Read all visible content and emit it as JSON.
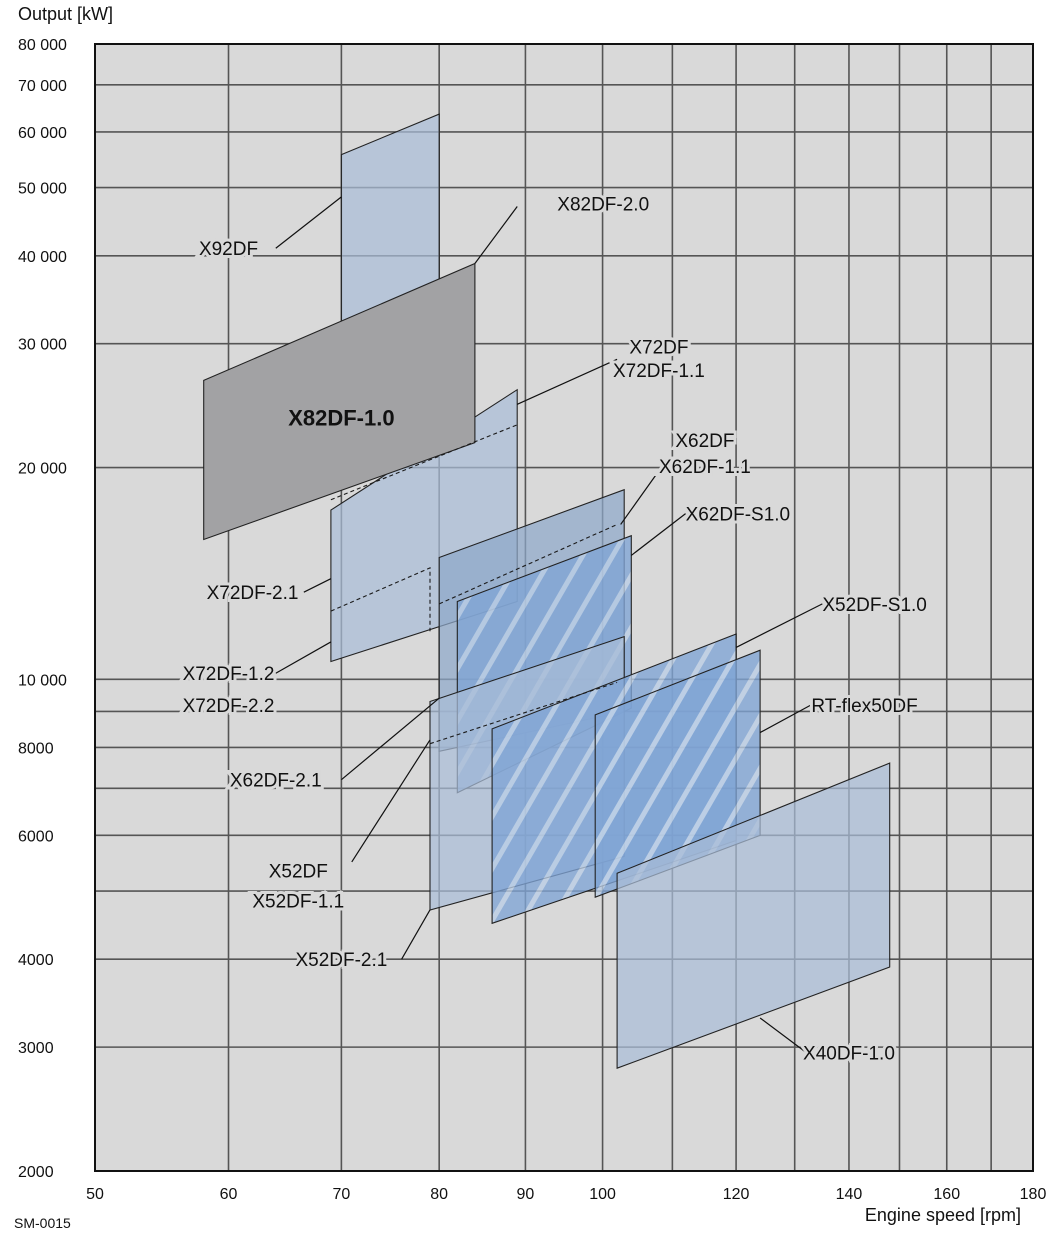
{
  "chart_data": {
    "type": "area",
    "ylabel": "Output [kW]",
    "xlabel": "Engine speed [rpm]",
    "x_scale": "log",
    "y_scale": "log",
    "xlim": [
      50,
      180
    ],
    "ylim": [
      2000,
      80000
    ],
    "grid": true,
    "x_ticks": [
      {
        "v": 50,
        "label": "50"
      },
      {
        "v": 60,
        "label": "60"
      },
      {
        "v": 70,
        "label": "70"
      },
      {
        "v": 80,
        "label": "80"
      },
      {
        "v": 90,
        "label": "90"
      },
      {
        "v": 100,
        "label": "100"
      },
      {
        "v": 120,
        "label": "120"
      },
      {
        "v": 140,
        "label": "140"
      },
      {
        "v": 160,
        "label": "160"
      },
      {
        "v": 180,
        "label": "180"
      }
    ],
    "x_minor_grid": [
      110,
      130,
      150,
      170
    ],
    "y_ticks": [
      {
        "v": 2000,
        "label": "2000"
      },
      {
        "v": 3000,
        "label": "3000"
      },
      {
        "v": 4000,
        "label": "4000"
      },
      {
        "v": 6000,
        "label": "6000"
      },
      {
        "v": 8000,
        "label": "8000"
      },
      {
        "v": 10000,
        "label": "10 000"
      },
      {
        "v": 20000,
        "label": "20 000"
      },
      {
        "v": 30000,
        "label": "30 000"
      },
      {
        "v": 40000,
        "label": "40 000"
      },
      {
        "v": 50000,
        "label": "50 000"
      },
      {
        "v": 60000,
        "label": "60 000"
      },
      {
        "v": 70000,
        "label": "70 000"
      },
      {
        "v": 80000,
        "label": "80 000"
      }
    ],
    "y_minor_grid": [
      5000,
      7000,
      9000
    ],
    "engines": [
      {
        "name": "X92DF",
        "style": "light",
        "points": [
          [
            70,
            55700
          ],
          [
            80,
            63600
          ],
          [
            80,
            36500
          ],
          [
            70,
            32100
          ]
        ]
      },
      {
        "name": "X72DF-1.2 / X72DF-2.2",
        "style": "light",
        "points": [
          [
            69,
            17400
          ],
          [
            89,
            25800
          ],
          [
            89,
            12900
          ],
          [
            69,
            10600
          ]
        ]
      },
      {
        "name": "X82DF-1.0",
        "style": "dark",
        "points": [
          [
            58,
            26600
          ],
          [
            84,
            39000
          ],
          [
            84,
            21700
          ],
          [
            58,
            15800
          ]
        ]
      },
      {
        "name": "X62DF-2.1",
        "style": "mid",
        "points": [
          [
            80,
            14900
          ],
          [
            103,
            18600
          ],
          [
            103,
            9000
          ],
          [
            80,
            7900
          ]
        ]
      },
      {
        "name": "X62DF-S1.0",
        "style": "hatched",
        "points": [
          [
            82,
            12900
          ],
          [
            104,
            16000
          ],
          [
            104,
            9100
          ],
          [
            82,
            6900
          ]
        ]
      },
      {
        "name": "X52DF-2.1",
        "style": "light",
        "points": [
          [
            79,
            9300
          ],
          [
            103,
            11500
          ],
          [
            103,
            5600
          ],
          [
            79,
            4700
          ]
        ]
      },
      {
        "name": "X52DF-S1.0",
        "style": "hatched",
        "points": [
          [
            86,
            8500
          ],
          [
            120,
            11600
          ],
          [
            120,
            5900
          ],
          [
            86,
            4500
          ]
        ]
      },
      {
        "name": "RT-flex50DF",
        "style": "hatched",
        "points": [
          [
            99,
            8900
          ],
          [
            124,
            11000
          ],
          [
            124,
            6000
          ],
          [
            99,
            4900
          ]
        ]
      },
      {
        "name": "X40DF-1.0",
        "style": "light",
        "points": [
          [
            102,
            5300
          ],
          [
            148,
            7600
          ],
          [
            148,
            3900
          ],
          [
            102,
            2800
          ]
        ]
      }
    ],
    "overlay_lines": [
      {
        "points": [
          [
            69,
            18000
          ],
          [
            89,
            23000
          ]
        ]
      },
      {
        "points": [
          [
            69,
            12500
          ],
          [
            79,
            14400
          ],
          [
            79,
            11700
          ]
        ]
      },
      {
        "points": [
          [
            80,
            12800
          ],
          [
            102,
            16600
          ]
        ]
      },
      {
        "points": [
          [
            79,
            8100
          ],
          [
            102,
            9900
          ]
        ]
      }
    ],
    "labels": [
      {
        "text": "X92DF",
        "x": 60,
        "y": 41000,
        "bold": false,
        "anchor": "middle",
        "leader": [
          [
            70,
            48500
          ],
          [
            64,
            41000
          ]
        ]
      },
      {
        "text": "X82DF-2.0",
        "x": 94,
        "y": 47500,
        "bold": false,
        "anchor": "start",
        "leader": [
          [
            89,
            47000
          ],
          [
            84,
            39000
          ]
        ]
      },
      {
        "text": "X82DF-1.0",
        "x": 70,
        "y": 23500,
        "bold": true,
        "anchor": "middle",
        "leader": null
      },
      {
        "text": "X72DF",
        "x": 108,
        "y": 29700,
        "bold": false,
        "anchor": "middle",
        "leader": null
      },
      {
        "text": "X72DF-1.1",
        "x": 108,
        "y": 27500,
        "bold": false,
        "anchor": "middle",
        "leader": [
          [
            102,
            28500
          ],
          [
            89,
            24600
          ]
        ]
      },
      {
        "text": "X62DF",
        "x": 115,
        "y": 21900,
        "bold": false,
        "anchor": "middle",
        "leader": null
      },
      {
        "text": "X62DF-1.1",
        "x": 115,
        "y": 20100,
        "bold": false,
        "anchor": "middle",
        "leader": [
          [
            108.5,
            20100
          ],
          [
            102.5,
            16600
          ]
        ]
      },
      {
        "text": "X62DF-S1.0",
        "x": 112,
        "y": 17200,
        "bold": false,
        "anchor": "start",
        "leader": [
          [
            112,
            17200
          ],
          [
            104,
            15000
          ]
        ]
      },
      {
        "text": "X72DF-2.1",
        "x": 62,
        "y": 13300,
        "bold": false,
        "anchor": "middle",
        "leader": [
          [
            66.5,
            13300
          ],
          [
            69,
            13900
          ]
        ]
      },
      {
        "text": "X52DF-S1.0",
        "x": 135,
        "y": 12800,
        "bold": false,
        "anchor": "start",
        "leader": [
          [
            135,
            12800
          ],
          [
            120,
            11100
          ]
        ]
      },
      {
        "text": "X72DF-1.2",
        "x": 60,
        "y": 10200,
        "bold": false,
        "anchor": "middle",
        "leader": [
          [
            64,
            10200
          ],
          [
            69,
            11300
          ]
        ]
      },
      {
        "text": "X72DF-2.2",
        "x": 60,
        "y": 9200,
        "bold": false,
        "anchor": "middle",
        "leader": null
      },
      {
        "text": "RT-flex50DF",
        "x": 133,
        "y": 9200,
        "bold": false,
        "anchor": "start",
        "leader": [
          [
            133,
            9200
          ],
          [
            124,
            8400
          ]
        ]
      },
      {
        "text": "X62DF-2.1",
        "x": 64,
        "y": 7200,
        "bold": false,
        "anchor": "middle",
        "leader": [
          [
            70,
            7200
          ],
          [
            80,
            9400
          ]
        ]
      },
      {
        "text": "X52DF",
        "x": 66,
        "y": 5350,
        "bold": false,
        "anchor": "middle",
        "leader": [
          [
            71,
            5500
          ],
          [
            79,
            8200
          ]
        ]
      },
      {
        "text": "X52DF-1.1",
        "x": 66,
        "y": 4850,
        "bold": false,
        "anchor": "middle",
        "leader": null
      },
      {
        "text": "X52DF-2.1",
        "x": 70,
        "y": 4000,
        "bold": false,
        "anchor": "middle",
        "leader": [
          [
            76,
            4000
          ],
          [
            79,
            4700
          ]
        ]
      },
      {
        "text": "X40DF-1.0",
        "x": 140,
        "y": 2950,
        "bold": false,
        "anchor": "middle",
        "leader": [
          [
            132,
            2950
          ],
          [
            124,
            3300
          ]
        ]
      }
    ],
    "colors": {
      "background": "#d9d9d9",
      "grid": "#555555",
      "light_fill": "#a9bcd7",
      "mid_fill": "#8ea7c9",
      "dark_fill": "#a2a2a4",
      "hatched_fill": "#84a7d6",
      "outline": "#222222"
    }
  },
  "footer": {
    "code": "SM-0015"
  }
}
